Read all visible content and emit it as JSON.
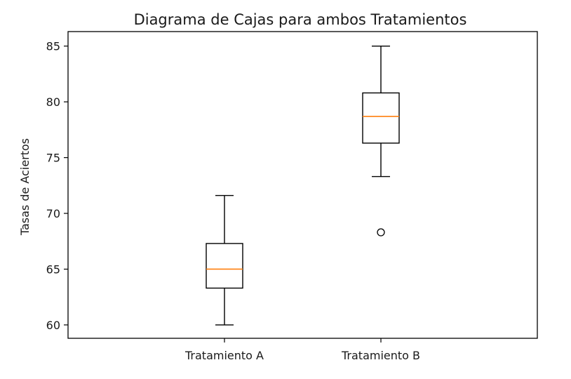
{
  "chart_data": {
    "type": "box",
    "title": "Diagrama de Cajas para ambos Tratamientos",
    "xlabel": "",
    "ylabel": "Tasas de Aciertos",
    "ylim": [
      58.8,
      86.3
    ],
    "yticks": [
      60,
      65,
      70,
      75,
      80,
      85
    ],
    "categories": [
      "Tratamiento A",
      "Tratamiento B"
    ],
    "boxes": [
      {
        "whisker_low": 60.0,
        "q1": 63.3,
        "median": 65.0,
        "q3": 67.3,
        "whisker_high": 71.6,
        "outliers": []
      },
      {
        "whisker_low": 73.3,
        "q1": 76.3,
        "median": 78.7,
        "q3": 80.8,
        "whisker_high": 85.0,
        "outliers": [
          68.3
        ]
      }
    ],
    "grid": false,
    "colors": {
      "box": "#000000",
      "median": "#ff7f0e",
      "outlier_edge": "#000000",
      "axes": "#000000",
      "text": "#1a1a1a"
    }
  }
}
